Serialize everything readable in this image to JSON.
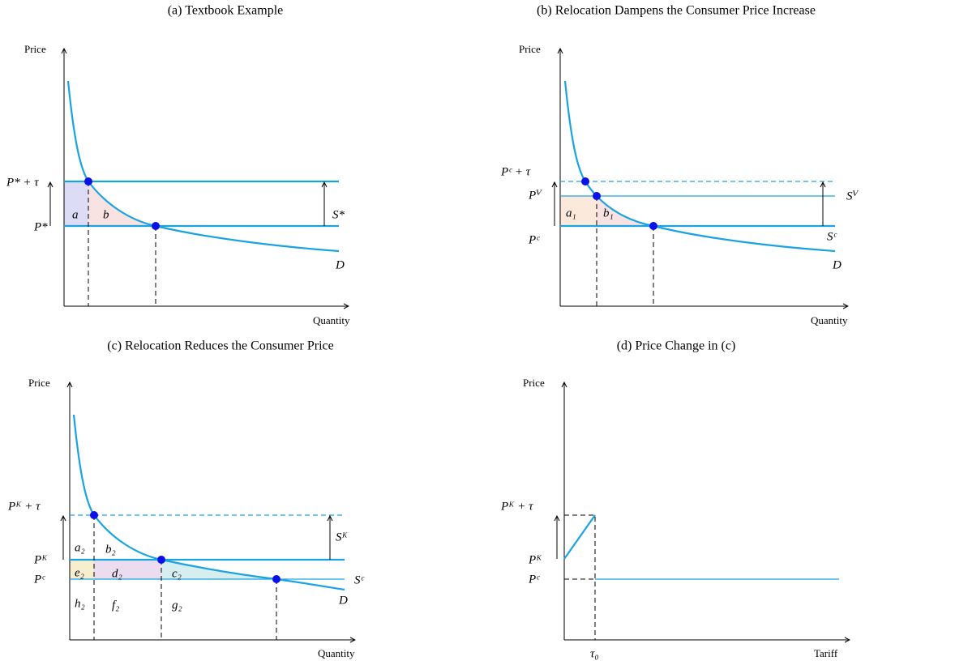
{
  "panels": [
    {
      "title": "(a) Textbook Example",
      "y_axis": "Price",
      "x_axis": "Quantity",
      "labels": [
        "P* + τ",
        "P*",
        "a",
        "b",
        "S*",
        "D"
      ]
    },
    {
      "title": "(b) Relocation Dampens the Consumer Price Increase",
      "y_axis": "Price",
      "x_axis": "Quantity",
      "labels": [
        "Pᶜ + τ",
        "Pⱽ",
        "Pᶜ",
        "a₁",
        "b₁",
        "Sⱽ",
        "Sᶜ",
        "D"
      ]
    },
    {
      "title": "(c) Relocation Reduces the Consumer Price",
      "y_axis": "Price",
      "x_axis": "Quantity",
      "labels": [
        "Pᴷ + τ",
        "Pᴷ",
        "Pᶜ",
        "a₂",
        "b₂",
        "e₂",
        "d₂",
        "c₂",
        "h₂",
        "f₂",
        "g₂",
        "Sᴷ",
        "Sᶜ",
        "D"
      ]
    },
    {
      "title": "(d) Price Change in (c)",
      "y_axis": "Price",
      "x_axis": "Tariff",
      "labels": [
        "Pᴷ + τ",
        "Pᴷ",
        "Pᶜ",
        "τ₀"
      ]
    }
  ]
}
